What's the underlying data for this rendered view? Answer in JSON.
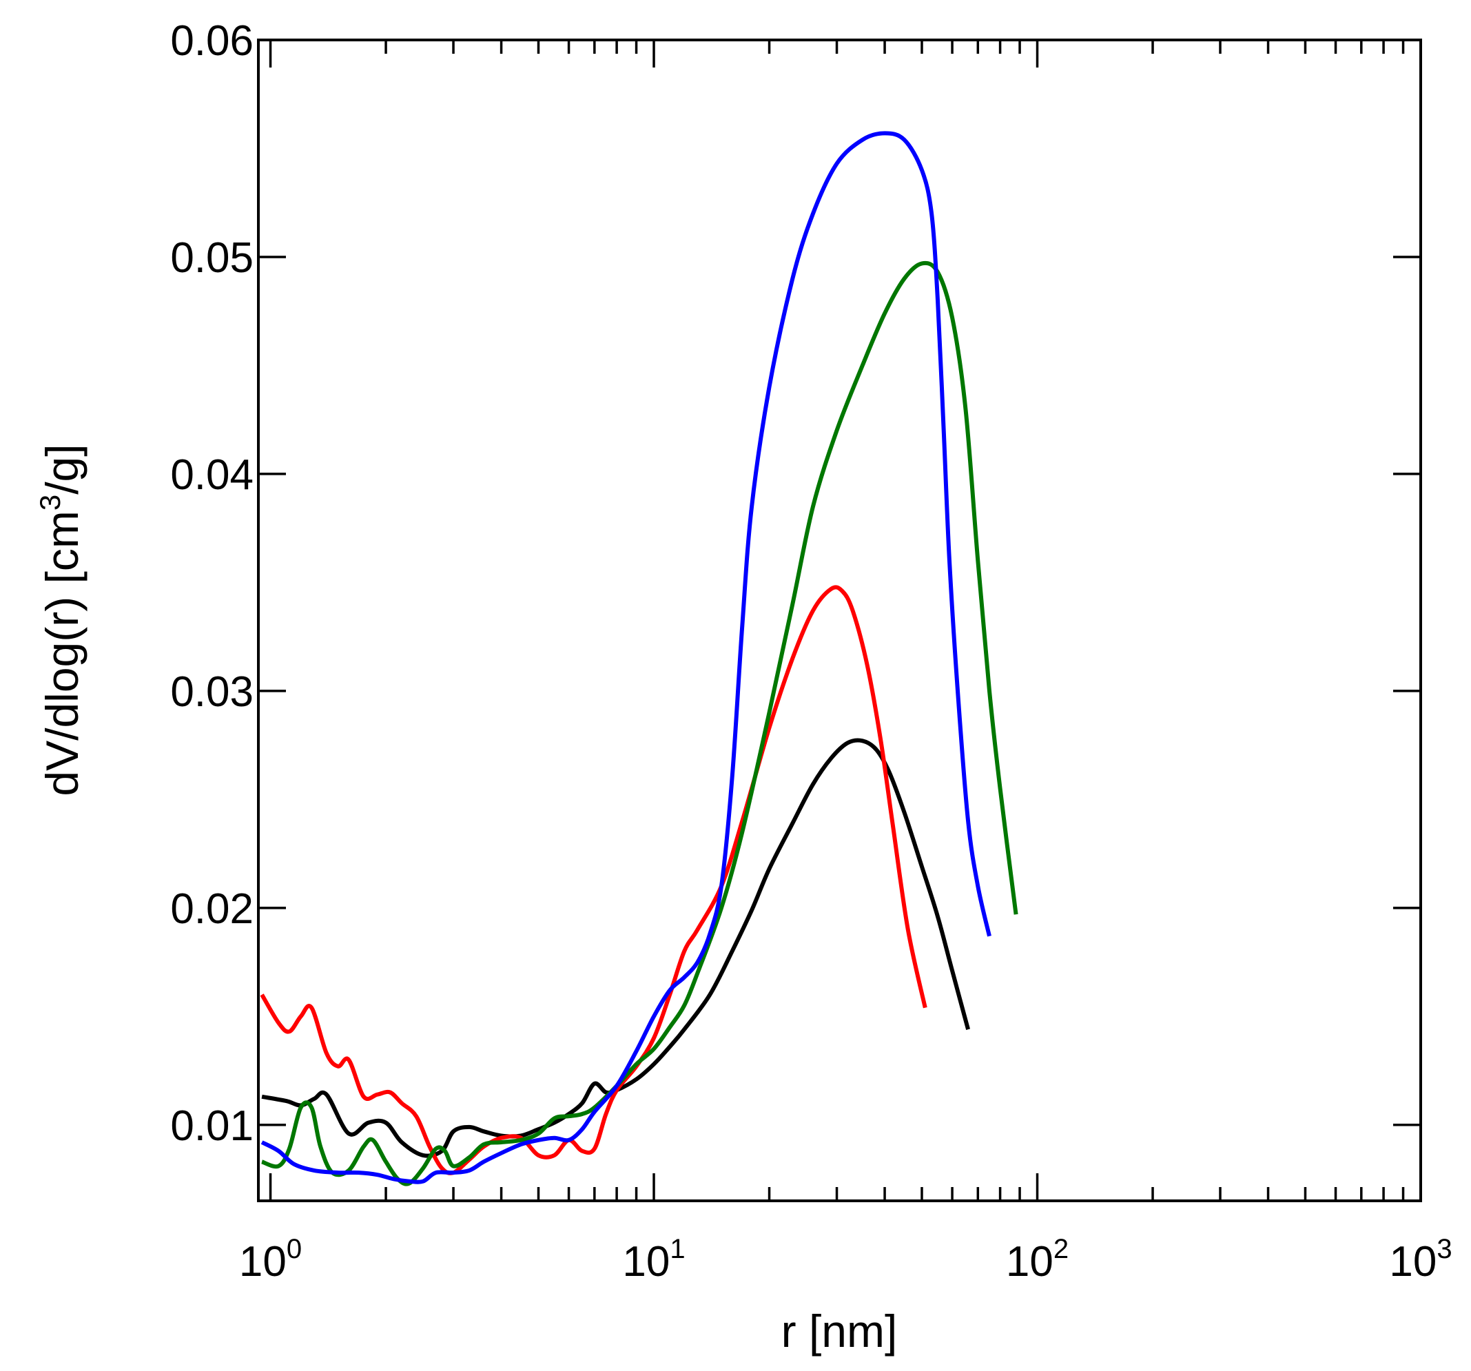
{
  "chart_data": {
    "type": "line",
    "title": "",
    "xlabel": "r [nm]",
    "ylabel_main": "dV/dlog(r) [cm",
    "ylabel_sup": "3",
    "ylabel_tail": "/g]",
    "xscale": "log",
    "xlim": [
      0.93,
      1000
    ],
    "ylim": [
      0.0065,
      0.06
    ],
    "grid": false,
    "x_ticks": [
      {
        "base": "10",
        "exp": "0",
        "value": 1
      },
      {
        "base": "10",
        "exp": "1",
        "value": 10
      },
      {
        "base": "10",
        "exp": "2",
        "value": 100
      },
      {
        "base": "10",
        "exp": "3",
        "value": 1000
      }
    ],
    "y_ticks": [
      {
        "label": "0.01",
        "value": 0.01
      },
      {
        "label": "0.02",
        "value": 0.02
      },
      {
        "label": "0.03",
        "value": 0.03
      },
      {
        "label": "0.04",
        "value": 0.04
      },
      {
        "label": "0.05",
        "value": 0.05
      },
      {
        "label": "0.06",
        "value": 0.06
      }
    ],
    "series": [
      {
        "name": "black",
        "color": "#000000",
        "x": [
          0.95,
          1.1,
          1.2,
          1.3,
          1.4,
          1.6,
          1.8,
          2.0,
          2.2,
          2.5,
          2.8,
          3.0,
          3.3,
          3.6,
          4.0,
          4.5,
          5.0,
          5.5,
          6.0,
          6.5,
          7.0,
          7.5,
          8.0,
          9.0,
          10,
          11,
          12,
          14,
          16,
          18,
          20,
          23,
          26,
          29,
          32,
          35,
          38,
          41,
          45,
          50,
          55,
          60,
          66
        ],
        "values": [
          0.0113,
          0.0111,
          0.0109,
          0.0112,
          0.0114,
          0.0096,
          0.0101,
          0.0101,
          0.0092,
          0.0086,
          0.0088,
          0.0097,
          0.0099,
          0.0097,
          0.0095,
          0.0095,
          0.0098,
          0.0101,
          0.0105,
          0.011,
          0.0119,
          0.0115,
          0.0116,
          0.0121,
          0.0128,
          0.0136,
          0.0144,
          0.016,
          0.018,
          0.0199,
          0.0218,
          0.0239,
          0.0257,
          0.0269,
          0.0276,
          0.0277,
          0.0273,
          0.0263,
          0.0244,
          0.0219,
          0.0196,
          0.0171,
          0.0144
        ]
      },
      {
        "name": "red",
        "color": "#ff0000",
        "x": [
          0.95,
          1.05,
          1.12,
          1.2,
          1.28,
          1.4,
          1.5,
          1.6,
          1.75,
          1.9,
          2.05,
          2.2,
          2.4,
          2.6,
          2.8,
          3.0,
          3.3,
          3.6,
          4.0,
          4.5,
          5.0,
          5.5,
          6.0,
          6.5,
          7.0,
          7.5,
          8.0,
          9.0,
          10,
          11,
          12,
          13,
          15,
          17,
          20,
          23,
          26,
          29,
          31,
          33,
          36,
          39,
          42,
          46,
          51
        ],
        "values": [
          0.016,
          0.0147,
          0.0143,
          0.015,
          0.0154,
          0.0133,
          0.0127,
          0.013,
          0.0113,
          0.0114,
          0.0115,
          0.011,
          0.0104,
          0.009,
          0.008,
          0.0078,
          0.0084,
          0.009,
          0.0094,
          0.0094,
          0.0086,
          0.0086,
          0.0093,
          0.0088,
          0.0089,
          0.0105,
          0.0116,
          0.0127,
          0.014,
          0.016,
          0.018,
          0.019,
          0.021,
          0.024,
          0.0283,
          0.0315,
          0.0337,
          0.0347,
          0.0346,
          0.0337,
          0.0312,
          0.0278,
          0.0238,
          0.019,
          0.0154
        ]
      },
      {
        "name": "green",
        "color": "#007700",
        "x": [
          0.95,
          1.05,
          1.12,
          1.2,
          1.28,
          1.35,
          1.45,
          1.6,
          1.75,
          1.85,
          2.0,
          2.15,
          2.3,
          2.5,
          2.7,
          2.85,
          3.0,
          3.3,
          3.6,
          4.0,
          4.5,
          5.0,
          5.5,
          6.0,
          6.5,
          7.0,
          8.0,
          9.0,
          10,
          11,
          12,
          13,
          15,
          17,
          20,
          23,
          26,
          30,
          35,
          40,
          45,
          50,
          55,
          60,
          65,
          70,
          75,
          80,
          88
        ],
        "values": [
          0.0083,
          0.0081,
          0.0089,
          0.0108,
          0.0108,
          0.009,
          0.0078,
          0.0079,
          0.009,
          0.0093,
          0.0083,
          0.0075,
          0.0073,
          0.008,
          0.0089,
          0.0088,
          0.0081,
          0.0085,
          0.0091,
          0.0092,
          0.0093,
          0.0096,
          0.0103,
          0.0104,
          0.0105,
          0.0108,
          0.0118,
          0.0128,
          0.0135,
          0.0145,
          0.0155,
          0.017,
          0.02,
          0.0235,
          0.029,
          0.034,
          0.0385,
          0.042,
          0.045,
          0.0474,
          0.049,
          0.0497,
          0.0493,
          0.0472,
          0.043,
          0.036,
          0.03,
          0.0255,
          0.0197
        ]
      },
      {
        "name": "blue",
        "color": "#0000ff",
        "x": [
          0.95,
          1.05,
          1.15,
          1.3,
          1.5,
          1.7,
          1.9,
          2.1,
          2.3,
          2.5,
          2.7,
          3.0,
          3.3,
          3.6,
          4.0,
          4.5,
          5.0,
          5.5,
          6.0,
          6.5,
          7.0,
          8.0,
          9.0,
          10,
          11,
          12,
          13,
          14,
          15,
          16,
          17,
          18,
          20,
          23,
          26,
          30,
          35,
          40,
          45,
          50,
          53,
          55,
          57,
          59,
          62,
          66,
          70,
          75
        ],
        "values": [
          0.0092,
          0.0088,
          0.0082,
          0.0079,
          0.0078,
          0.0078,
          0.0077,
          0.0075,
          0.0074,
          0.0074,
          0.0078,
          0.0078,
          0.0079,
          0.0083,
          0.0087,
          0.0091,
          0.0093,
          0.0094,
          0.0093,
          0.0098,
          0.0106,
          0.0118,
          0.0134,
          0.015,
          0.0162,
          0.0168,
          0.0175,
          0.0188,
          0.021,
          0.026,
          0.033,
          0.0385,
          0.044,
          0.049,
          0.052,
          0.0543,
          0.0554,
          0.0557,
          0.0554,
          0.054,
          0.052,
          0.048,
          0.042,
          0.036,
          0.03,
          0.024,
          0.021,
          0.0187
        ]
      }
    ]
  }
}
